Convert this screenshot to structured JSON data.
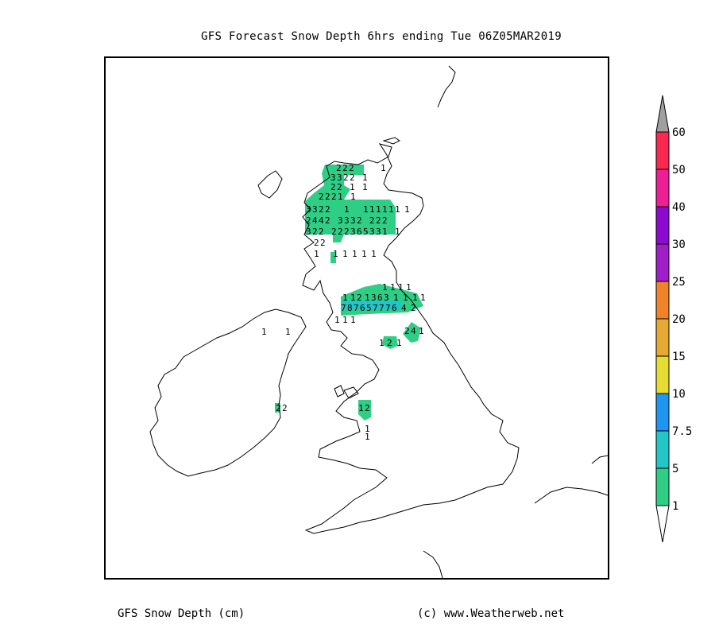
{
  "title": "GFS Forecast Snow Depth 6hrs ending Tue 06Z05MAR2019",
  "footer": {
    "variable": "GFS Snow Depth (cm)",
    "credit": "(c) www.Weatherweb.net"
  },
  "legend": {
    "levels": [
      "1",
      "5",
      "7.5",
      "10",
      "15",
      "20",
      "25",
      "30",
      "40",
      "50",
      "60"
    ],
    "colors": [
      "#2ecf85",
      "#21c7c7",
      "#1e96f0",
      "#e6dc32",
      "#e6aa32",
      "#f08228",
      "#a01ec8",
      "#8c0ad2",
      "#f01e96",
      "#fa2850",
      "#ff5046"
    ],
    "top_cap_color": "#a0a0a0"
  },
  "colors": {
    "snow_low": "#2ecf85",
    "snow_mid": "#21c7c7",
    "coast": "#000000"
  },
  "grid_values": {
    "highlands_row1": [
      "2",
      "2",
      "2",
      "1"
    ],
    "highlands_row2": [
      "3",
      "3",
      "2",
      "2",
      "1"
    ],
    "highlands_row3": [
      "2",
      "2",
      "1",
      "1"
    ],
    "highlands_row4": [
      "2",
      "2",
      "2",
      "1",
      "1"
    ],
    "highlands_row5": [
      "3",
      "3",
      "2",
      "2",
      "1",
      "1",
      "1",
      "1",
      "1",
      "1",
      "1",
      "1"
    ],
    "highlands_row6": [
      "2",
      "4",
      "4",
      "2",
      "3",
      "3",
      "3",
      "2",
      "2",
      "2",
      "2"
    ],
    "highlands_row7": [
      "3",
      "2",
      "2",
      "2",
      "2",
      "2",
      "3",
      "6",
      "5",
      "3",
      "3",
      "1",
      "1"
    ],
    "highlands_row8": [
      "2",
      "2"
    ],
    "highlands_row9": [
      "1",
      "1",
      "1",
      "1",
      "1",
      "1"
    ],
    "southern_row1": [
      "1",
      "1",
      "1",
      "1"
    ],
    "southern_row2": [
      "1",
      "1",
      "2",
      "1",
      "3",
      "6",
      "3",
      "1",
      "1",
      "1",
      "1"
    ],
    "southern_row3": [
      "7",
      "8",
      "7",
      "6",
      "5",
      "7",
      "7",
      "7",
      "6",
      "4",
      "2"
    ],
    "southern_row4": [
      "1",
      "1",
      "1"
    ],
    "pennines": [
      "2",
      "4",
      "1"
    ],
    "lakes": [
      "1",
      "2",
      "1"
    ],
    "ireland_north": [
      "1",
      "1"
    ],
    "ireland_mid": [
      "2",
      "2"
    ],
    "wales": [
      "1",
      "2"
    ],
    "wales_south": [
      "1",
      "1"
    ]
  }
}
